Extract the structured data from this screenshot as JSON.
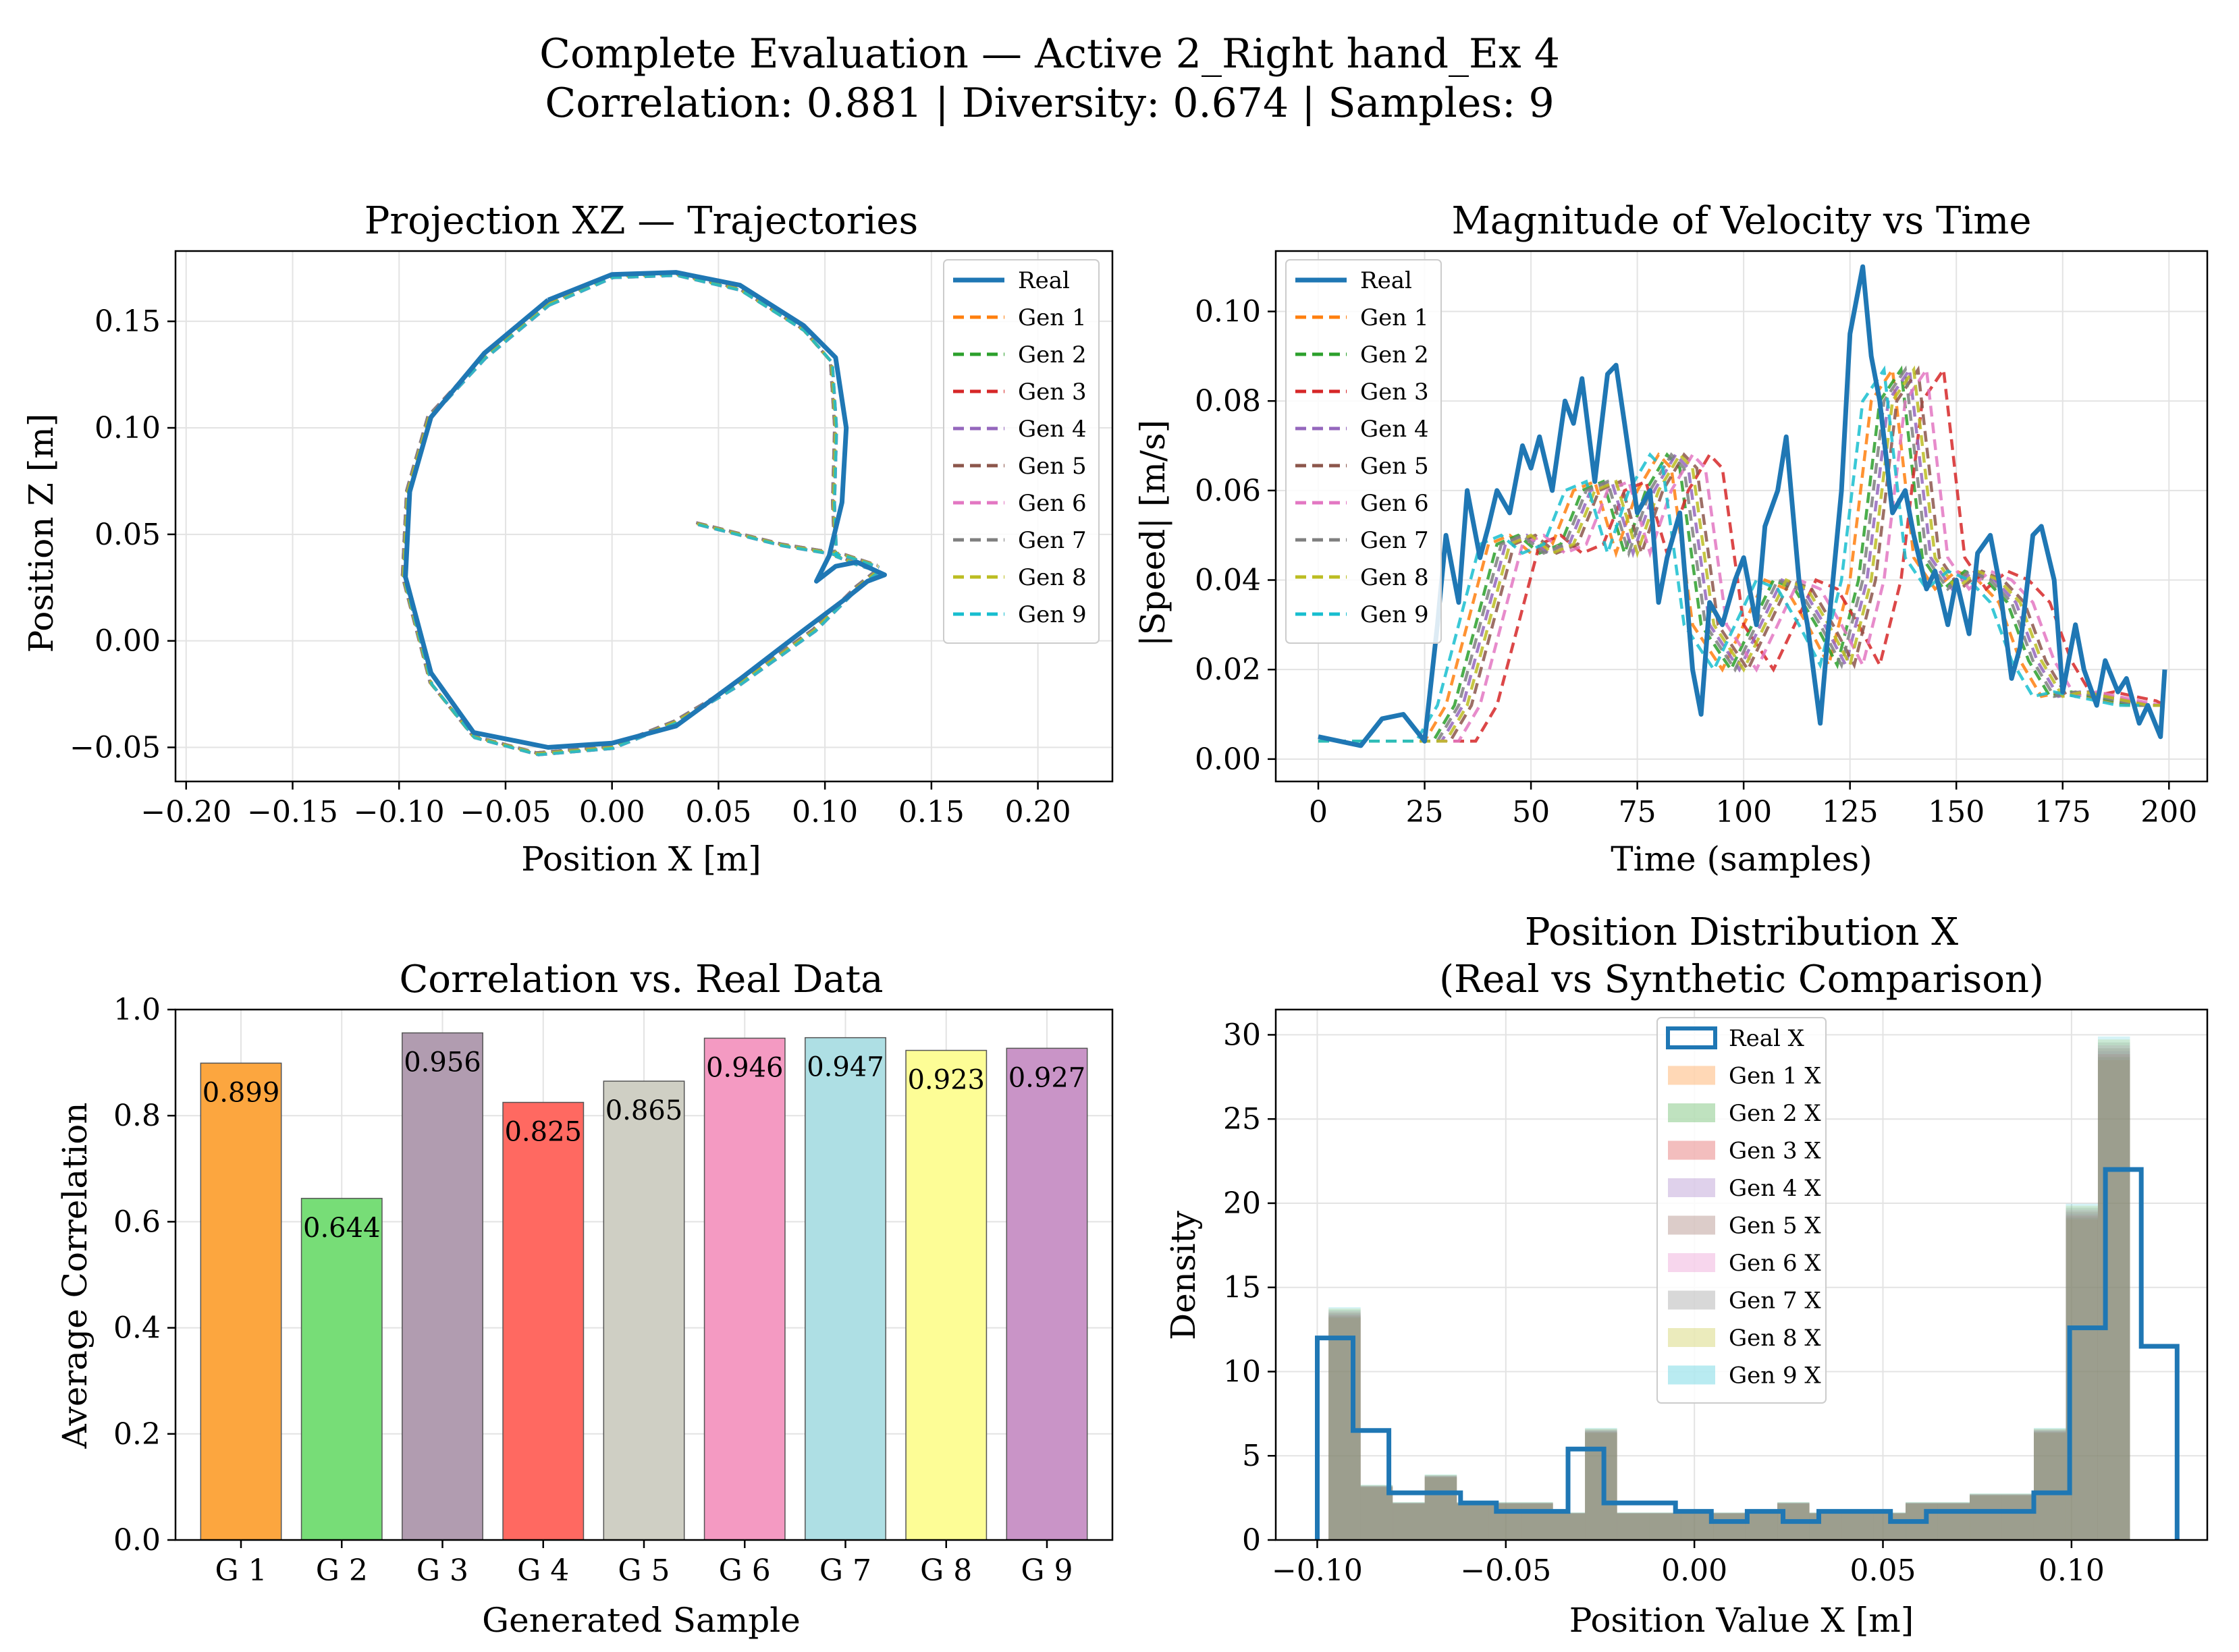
{
  "suptitle": {
    "line1": "Complete Evaluation — Active 2_Right hand_Ex 4",
    "line2": "Correlation: 0.881 | Diversity: 0.674 | Samples: 9"
  },
  "colors": {
    "real": "#1f77b4",
    "gens": [
      "#ff7f0e",
      "#2ca02c",
      "#d62728",
      "#9467bd",
      "#8c564b",
      "#e377c2",
      "#7f7f7f",
      "#bcbd22",
      "#17becf"
    ]
  },
  "chart_data": [
    {
      "type": "line",
      "id": "projection",
      "title": "Projection XZ — Trajectories",
      "xlabel": "Position X [m]",
      "ylabel": "Position Z [m]",
      "xlim": [
        -0.205,
        0.235
      ],
      "ylim": [
        -0.066,
        0.183
      ],
      "xticks": [
        -0.2,
        -0.15,
        -0.1,
        -0.05,
        0.0,
        0.05,
        0.1,
        0.15,
        0.2
      ],
      "xtick_labels": [
        "−0.20",
        "−0.15",
        "−0.10",
        "−0.05",
        "0.00",
        "0.05",
        "0.10",
        "0.15",
        "0.20"
      ],
      "yticks": [
        -0.05,
        0.0,
        0.05,
        0.1,
        0.15
      ],
      "ytick_labels": [
        "−0.05",
        "0.00",
        "0.05",
        "0.10",
        "0.15"
      ],
      "legend": [
        "Real",
        "Gen 1",
        "Gen 2",
        "Gen 3",
        "Gen 4",
        "Gen 5",
        "Gen 6",
        "Gen 7",
        "Gen 8",
        "Gen 9"
      ],
      "legend_loc": "upper right",
      "series": [
        {
          "name": "Real",
          "points": [
            [
              -0.03,
              0.16
            ],
            [
              0.0,
              0.172
            ],
            [
              0.03,
              0.173
            ],
            [
              0.06,
              0.167
            ],
            [
              0.09,
              0.148
            ],
            [
              0.105,
              0.133
            ],
            [
              0.11,
              0.1
            ],
            [
              0.108,
              0.065
            ],
            [
              0.102,
              0.04
            ],
            [
              0.096,
              0.028
            ],
            [
              0.105,
              0.035
            ],
            [
              0.115,
              0.037
            ],
            [
              0.128,
              0.031
            ],
            [
              0.12,
              0.028
            ],
            [
              0.11,
              0.02
            ],
            [
              0.09,
              0.005
            ],
            [
              0.06,
              -0.018
            ],
            [
              0.03,
              -0.04
            ],
            [
              0.0,
              -0.048
            ],
            [
              -0.03,
              -0.05
            ],
            [
              -0.065,
              -0.043
            ],
            [
              -0.085,
              -0.015
            ],
            [
              -0.097,
              0.03
            ],
            [
              -0.095,
              0.07
            ],
            [
              -0.085,
              0.105
            ],
            [
              -0.06,
              0.135
            ],
            [
              -0.03,
              0.16
            ]
          ]
        },
        {
          "name": "Gen",
          "points": [
            [
              -0.03,
              0.158
            ],
            [
              0.0,
              0.171
            ],
            [
              0.03,
              0.172
            ],
            [
              0.06,
              0.165
            ],
            [
              0.09,
              0.146
            ],
            [
              0.103,
              0.131
            ],
            [
              0.105,
              0.1
            ],
            [
              0.104,
              0.065
            ],
            [
              0.105,
              0.04
            ],
            [
              0.115,
              0.036
            ],
            [
              0.125,
              0.033
            ],
            [
              0.115,
              0.025
            ],
            [
              0.095,
              0.005
            ],
            [
              0.06,
              -0.02
            ],
            [
              0.03,
              -0.038
            ],
            [
              0.0,
              -0.05
            ],
            [
              -0.035,
              -0.053
            ],
            [
              -0.065,
              -0.045
            ],
            [
              -0.085,
              -0.02
            ],
            [
              -0.098,
              0.03
            ],
            [
              -0.096,
              0.07
            ],
            [
              -0.086,
              0.105
            ],
            [
              -0.06,
              0.133
            ],
            [
              -0.03,
              0.158
            ]
          ]
        },
        {
          "name": "Gen tail",
          "points": [
            [
              0.04,
              0.055
            ],
            [
              0.08,
              0.045
            ],
            [
              0.11,
              0.04
            ],
            [
              0.125,
              0.035
            ]
          ]
        }
      ]
    },
    {
      "type": "line",
      "id": "velocity",
      "title": "Magnitude of Velocity vs Time",
      "xlabel": "Time (samples)",
      "ylabel": "|Speed| [m/s]",
      "xlim": [
        -10,
        209
      ],
      "ylim": [
        -0.005,
        0.1135
      ],
      "xticks": [
        0,
        25,
        50,
        75,
        100,
        125,
        150,
        175,
        200
      ],
      "xtick_labels": [
        "0",
        "25",
        "50",
        "75",
        "100",
        "125",
        "150",
        "175",
        "200"
      ],
      "yticks": [
        0.0,
        0.02,
        0.04,
        0.06,
        0.08,
        0.1
      ],
      "ytick_labels": [
        "0.00",
        "0.02",
        "0.04",
        "0.06",
        "0.08",
        "0.10"
      ],
      "legend": [
        "Real",
        "Gen 1",
        "Gen 2",
        "Gen 3",
        "Gen 4",
        "Gen 5",
        "Gen 6",
        "Gen 7",
        "Gen 8",
        "Gen 9"
      ],
      "legend_loc": "upper left",
      "real": {
        "x": [
          0,
          5,
          10,
          15,
          20,
          25,
          28,
          30,
          33,
          35,
          38,
          40,
          42,
          45,
          48,
          50,
          52,
          55,
          58,
          60,
          62,
          65,
          68,
          70,
          72,
          75,
          78,
          80,
          82,
          85,
          88,
          90,
          92,
          95,
          98,
          100,
          103,
          105,
          108,
          110,
          113,
          115,
          118,
          120,
          123,
          125,
          128,
          130,
          132,
          135,
          138,
          140,
          143,
          145,
          148,
          150,
          153,
          155,
          158,
          160,
          163,
          165,
          168,
          170,
          173,
          175,
          178,
          180,
          183,
          185,
          188,
          190,
          193,
          195,
          198,
          199
        ],
        "y": [
          0.005,
          0.004,
          0.003,
          0.009,
          0.01,
          0.004,
          0.03,
          0.05,
          0.035,
          0.06,
          0.045,
          0.052,
          0.06,
          0.055,
          0.07,
          0.065,
          0.072,
          0.06,
          0.08,
          0.075,
          0.085,
          0.062,
          0.086,
          0.088,
          0.075,
          0.055,
          0.06,
          0.035,
          0.045,
          0.055,
          0.02,
          0.01,
          0.035,
          0.03,
          0.04,
          0.045,
          0.03,
          0.052,
          0.06,
          0.072,
          0.04,
          0.03,
          0.008,
          0.03,
          0.06,
          0.095,
          0.11,
          0.09,
          0.08,
          0.055,
          0.06,
          0.05,
          0.038,
          0.042,
          0.03,
          0.04,
          0.028,
          0.046,
          0.05,
          0.04,
          0.018,
          0.025,
          0.05,
          0.052,
          0.04,
          0.015,
          0.03,
          0.02,
          0.012,
          0.022,
          0.015,
          0.018,
          0.008,
          0.012,
          0.005,
          0.02
        ]
      },
      "gen_template": {
        "x": [
          0,
          10,
          20,
          25,
          30,
          35,
          40,
          45,
          50,
          55,
          60,
          65,
          70,
          75,
          80,
          83,
          88,
          95,
          100,
          105,
          110,
          115,
          120,
          125,
          130,
          135,
          140,
          145,
          150,
          155,
          160,
          165,
          170,
          175,
          180,
          185,
          190,
          195
        ],
        "y": [
          0.004,
          0.004,
          0.004,
          0.004,
          0.012,
          0.03,
          0.048,
          0.05,
          0.046,
          0.048,
          0.06,
          0.062,
          0.046,
          0.06,
          0.068,
          0.065,
          0.03,
          0.02,
          0.03,
          0.04,
          0.038,
          0.03,
          0.021,
          0.04,
          0.08,
          0.087,
          0.045,
          0.038,
          0.042,
          0.04,
          0.035,
          0.022,
          0.014,
          0.015,
          0.014,
          0.013,
          0.012,
          0.012
        ]
      },
      "gen_shifts": [
        0,
        2,
        12,
        4,
        6,
        8,
        3,
        5,
        -2
      ]
    },
    {
      "type": "bar",
      "id": "correlation",
      "title": "Correlation vs. Real Data",
      "xlabel": "Generated Sample",
      "ylabel": "Average Correlation",
      "ylim": [
        0,
        1.0
      ],
      "yticks": [
        0.0,
        0.2,
        0.4,
        0.6,
        0.8,
        1.0
      ],
      "ytick_labels": [
        "0.0",
        "0.2",
        "0.4",
        "0.6",
        "0.8",
        "1.0"
      ],
      "categories": [
        "G 1",
        "G 2",
        "G 3",
        "G 4",
        "G 5",
        "G 6",
        "G 7",
        "G 8",
        "G 9"
      ],
      "values": [
        0.899,
        0.644,
        0.956,
        0.825,
        0.865,
        0.946,
        0.947,
        0.923,
        0.927
      ],
      "labels": [
        "0.899",
        "0.644",
        "0.956",
        "0.825",
        "0.865",
        "0.946",
        "0.947",
        "0.923",
        "0.927"
      ],
      "bar_colors": [
        "#fca63f",
        "#77dd77",
        "#b19cb0",
        "#ff6961",
        "#cfcfc4",
        "#f49ac2",
        "#aedfe4",
        "#fdfd96",
        "#c994c7"
      ]
    },
    {
      "type": "histogram",
      "id": "distribution",
      "title_line1": "Position Distribution X",
      "title_line2": "(Real vs Synthetic Comparison)",
      "xlabel": "Position Value X [m]",
      "ylabel": "Density",
      "xlim": [
        -0.111,
        0.136
      ],
      "ylim": [
        0,
        31.5
      ],
      "xticks": [
        -0.1,
        -0.05,
        0.0,
        0.05,
        0.1
      ],
      "xtick_labels": [
        "−0.10",
        "−0.05",
        "0.00",
        "0.05",
        "0.10"
      ],
      "yticks": [
        0,
        5,
        10,
        15,
        20,
        25,
        30
      ],
      "ytick_labels": [
        "0",
        "5",
        "10",
        "15",
        "20",
        "25",
        "30"
      ],
      "legend": [
        "Real X",
        "Gen 1 X",
        "Gen 2 X",
        "Gen 3 X",
        "Gen 4 X",
        "Gen 5 X",
        "Gen 6 X",
        "Gen 7 X",
        "Gen 8 X",
        "Gen 9 X"
      ],
      "legend_loc": "upper center",
      "real_edges": [
        -0.1,
        -0.0905,
        -0.081,
        -0.0715,
        -0.062,
        -0.0525,
        -0.043,
        -0.0335,
        -0.024,
        -0.0145,
        -0.005,
        0.0045,
        0.014,
        0.0235,
        0.033,
        0.0425,
        0.052,
        0.0615,
        0.071,
        0.0805,
        0.09,
        0.0995,
        0.109,
        0.1185,
        0.128
      ],
      "real_counts": [
        12,
        6.5,
        2.8,
        2.8,
        2.2,
        1.7,
        1.7,
        5.4,
        2.2,
        2.2,
        1.7,
        1.1,
        1.7,
        1.1,
        1.7,
        1.7,
        1.1,
        1.7,
        1.7,
        1.7,
        2.8,
        12.6,
        22,
        11.5
      ],
      "gen_edges": [
        -0.097,
        -0.0885,
        -0.08,
        -0.0715,
        -0.063,
        -0.0545,
        -0.046,
        -0.0375,
        -0.029,
        -0.0205,
        -0.012,
        -0.0035,
        0.005,
        0.0135,
        0.022,
        0.0305,
        0.039,
        0.0475,
        0.056,
        0.0645,
        0.073,
        0.0815,
        0.09,
        0.0985,
        0.107,
        0.1155
      ],
      "gen_counts": [
        13.5,
        3.2,
        2.2,
        3.8,
        2.2,
        2.2,
        2.2,
        1.6,
        6.5,
        1.6,
        1.6,
        1.6,
        1.6,
        1.6,
        2.2,
        1.6,
        1.6,
        1.6,
        2.2,
        2.2,
        2.7,
        2.7,
        6.5,
        19.5,
        29.2
      ]
    }
  ]
}
